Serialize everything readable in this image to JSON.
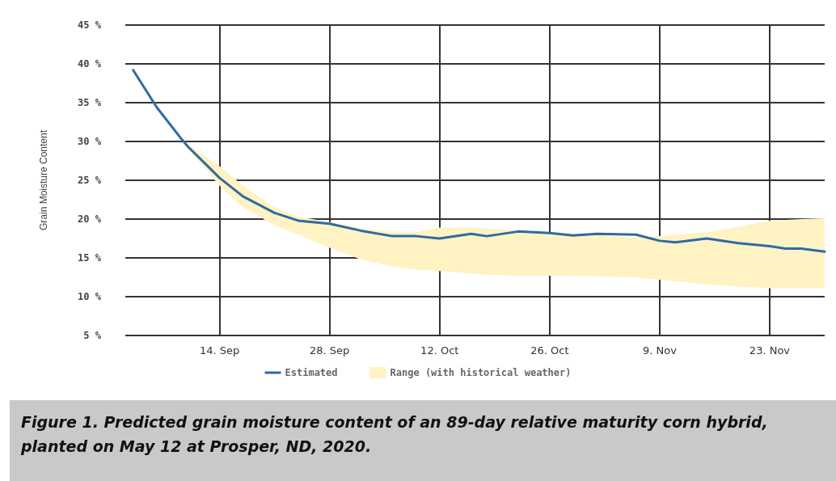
{
  "chart_data": {
    "type": "line",
    "ylabel": "Grain Moisture Content",
    "x": [
      "2020-09-03",
      "2020-09-06",
      "2020-09-09",
      "2020-09-10",
      "2020-09-14",
      "2020-09-17",
      "2020-09-21",
      "2020-09-24",
      "2020-09-28",
      "2020-10-02",
      "2020-10-06",
      "2020-10-09",
      "2020-10-12",
      "2020-10-16",
      "2020-10-18",
      "2020-10-22",
      "2020-10-26",
      "2020-10-29",
      "2020-11-01",
      "2020-11-06",
      "2020-11-09",
      "2020-11-11",
      "2020-11-15",
      "2020-11-19",
      "2020-11-23",
      "2020-11-25",
      "2020-11-27",
      "2020-11-30"
    ],
    "series": [
      {
        "name": "Estimated",
        "color": "#2f6aa3",
        "values": [
          39.2,
          34.4,
          30.5,
          29.3,
          25.3,
          22.9,
          20.8,
          19.8,
          19.4,
          18.5,
          17.8,
          17.8,
          17.5,
          18.1,
          17.8,
          18.4,
          18.2,
          17.9,
          18.1,
          18.0,
          17.2,
          17.0,
          17.5,
          16.9,
          16.5,
          16.2,
          16.2,
          15.8
        ]
      },
      {
        "name": "Range (with historical weather)",
        "type": "area",
        "color": "#fff3c4",
        "values": [
          null,
          null,
          null,
          null,
          null,
          null,
          null,
          null,
          null,
          null,
          null,
          null,
          null,
          null,
          null,
          null,
          null,
          null,
          null,
          null,
          null,
          null,
          null,
          null,
          null,
          null,
          null,
          null
        ],
        "lower": [
          null,
          null,
          null,
          29.0,
          24.3,
          21.5,
          19.2,
          18.0,
          16.3,
          14.8,
          13.9,
          13.5,
          13.3,
          13.0,
          12.8,
          12.7,
          12.7,
          12.7,
          12.6,
          12.5,
          12.2,
          12.0,
          11.6,
          11.3,
          11.1,
          11.1,
          11.1,
          11.1
        ],
        "upper": [
          null,
          null,
          null,
          29.6,
          26.8,
          24.3,
          21.5,
          20.3,
          19.6,
          18.8,
          18.3,
          18.3,
          18.9,
          18.9,
          18.8,
          18.6,
          18.3,
          18.2,
          18.0,
          17.6,
          17.8,
          18.0,
          18.3,
          19.0,
          19.8,
          19.9,
          20.0,
          20.1
        ]
      }
    ],
    "xlim": [
      "2020-09-02",
      "2020-11-30"
    ],
    "xticks": [
      {
        "value": "2020-09-14",
        "label": "14. Sep"
      },
      {
        "value": "2020-09-28",
        "label": "28. Sep"
      },
      {
        "value": "2020-10-12",
        "label": "12. Oct"
      },
      {
        "value": "2020-10-26",
        "label": "26. Oct"
      },
      {
        "value": "2020-11-09",
        "label": "9. Nov"
      },
      {
        "value": "2020-11-23",
        "label": "23. Nov"
      }
    ],
    "ylim": [
      5,
      45
    ],
    "yticks": [
      {
        "value": 5,
        "label": "5 %"
      },
      {
        "value": 10,
        "label": "10 %"
      },
      {
        "value": 15,
        "label": "15 %"
      },
      {
        "value": 20,
        "label": "20 %"
      },
      {
        "value": 25,
        "label": "25 %"
      },
      {
        "value": 30,
        "label": "30 %"
      },
      {
        "value": 35,
        "label": "35 %"
      },
      {
        "value": 40,
        "label": "40 %"
      },
      {
        "value": 45,
        "label": "45 %"
      }
    ],
    "grid": true,
    "legend": "bottom",
    "marker": "none",
    "line_style": "solid",
    "annotations": [
      "Figure 1. Predicted grain moisture content of an 89-day relative maturity corn hybrid, planted on May 12 at Prosper, ND, 2020."
    ]
  }
}
